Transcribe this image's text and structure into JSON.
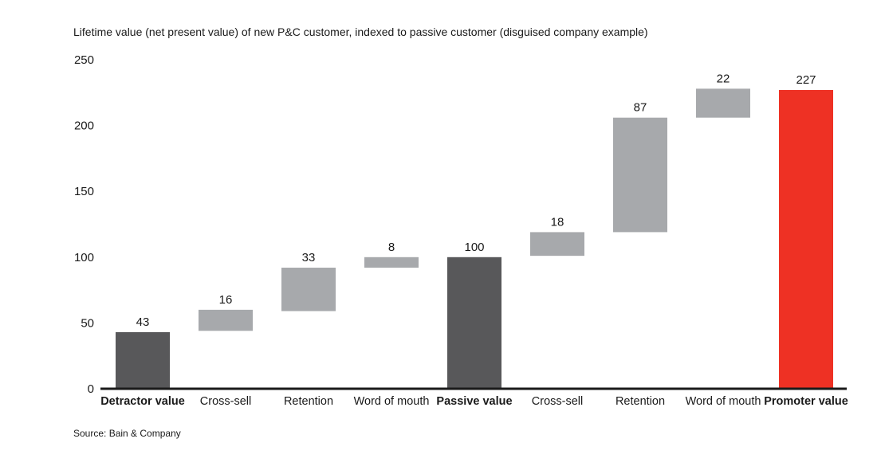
{
  "title": "Lifetime value (net present value) of new P&C customer, indexed to passive customer (disguised company example)",
  "source": "Source: Bain & Company",
  "chart_data": {
    "type": "bar",
    "subtype": "waterfall",
    "ylim": [
      0,
      250
    ],
    "yticks": [
      0,
      50,
      100,
      150,
      200,
      250
    ],
    "grid": false,
    "legend": "none",
    "categories": [
      "Detractor value",
      "Cross-sell",
      "Retention",
      "Word of mouth",
      "Passive value",
      "Cross-sell",
      "Retention",
      "Word of mouth",
      "Promoter value"
    ],
    "bars": [
      {
        "label": "Detractor value",
        "base": 0,
        "value": 43,
        "data_label": "43",
        "kind": "total",
        "bold": true
      },
      {
        "label": "Cross-sell",
        "base": 44,
        "value": 16,
        "data_label": "16",
        "kind": "step",
        "bold": false
      },
      {
        "label": "Retention",
        "base": 59,
        "value": 33,
        "data_label": "33",
        "kind": "step",
        "bold": false
      },
      {
        "label": "Word of mouth",
        "base": 92,
        "value": 8,
        "data_label": "8",
        "kind": "step",
        "bold": false
      },
      {
        "label": "Passive value",
        "base": 0,
        "value": 100,
        "data_label": "100",
        "kind": "total",
        "bold": true
      },
      {
        "label": "Cross-sell",
        "base": 101,
        "value": 18,
        "data_label": "18",
        "kind": "step",
        "bold": false
      },
      {
        "label": "Retention",
        "base": 119,
        "value": 87,
        "data_label": "87",
        "kind": "step",
        "bold": false
      },
      {
        "label": "Word of mouth",
        "base": 206,
        "value": 22,
        "data_label": "22",
        "kind": "step",
        "bold": false
      },
      {
        "label": "Promoter value",
        "base": 0,
        "value": 227,
        "data_label": "227",
        "kind": "highlight",
        "bold": true
      }
    ],
    "colors": {
      "total": "#58585a",
      "step": "#a7a9ac",
      "highlight": "#ee3124",
      "axis": "#1a1a1a"
    }
  }
}
